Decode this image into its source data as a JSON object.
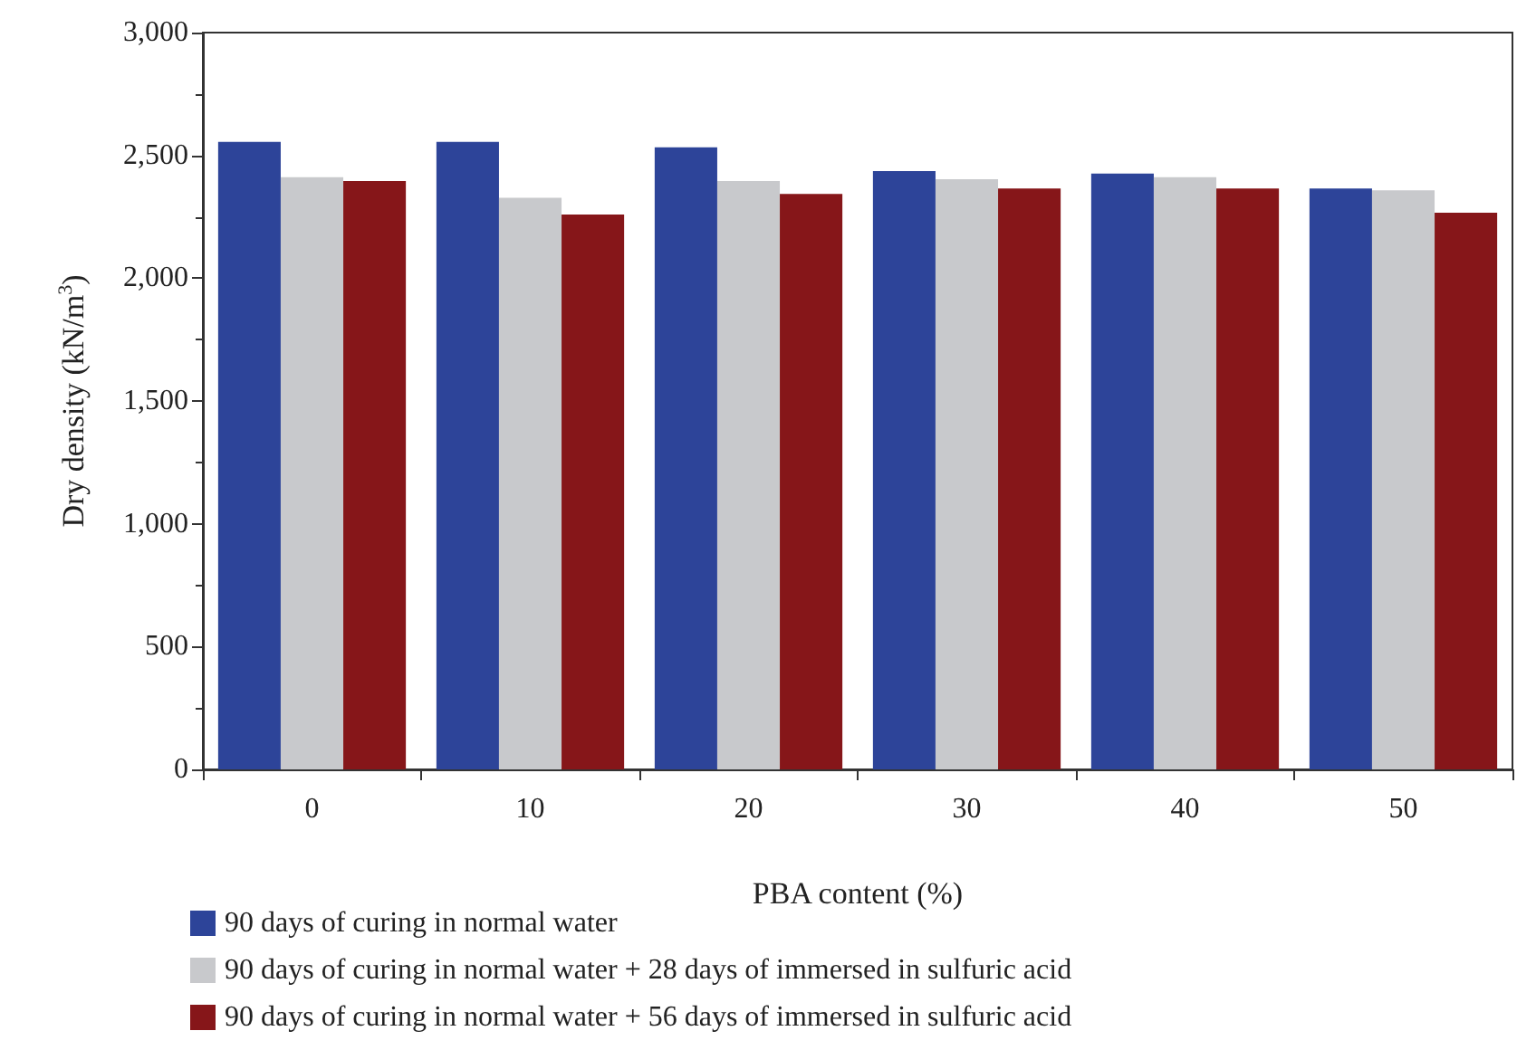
{
  "chart_data": {
    "type": "bar",
    "xlabel": "PBA content (%)",
    "ylabel": "Dry density (kN/m$^{3}$)",
    "categories": [
      "0",
      "10",
      "20",
      "30",
      "40",
      "50"
    ],
    "series": [
      {
        "name": "90 days of curing in normal water",
        "color": "#2d4499",
        "values": [
          2555,
          2555,
          2533,
          2436,
          2426,
          2365
        ]
      },
      {
        "name": "90 days of curing in normal water + 28 days of immersed in sulfuric acid",
        "color": "#c8c9cc",
        "values": [
          2411,
          2327,
          2396,
          2403,
          2411,
          2358
        ]
      },
      {
        "name": "90 days of curing in normal water + 56 days of immersed in sulfuric acid",
        "color": "#861619",
        "values": [
          2396,
          2259,
          2343,
          2365,
          2365,
          2267
        ]
      }
    ],
    "ylim": [
      0,
      3000
    ],
    "yticks": [
      0,
      500,
      {
        "value": 1000,
        "label": "1,000"
      },
      {
        "value": 1500,
        "label": "1,500"
      },
      {
        "value": 2000,
        "label": "2,000"
      },
      {
        "value": 2500,
        "label": "2,500"
      },
      {
        "value": 3000,
        "label": "3,000"
      }
    ],
    "grid": false,
    "legend": "bottom"
  }
}
